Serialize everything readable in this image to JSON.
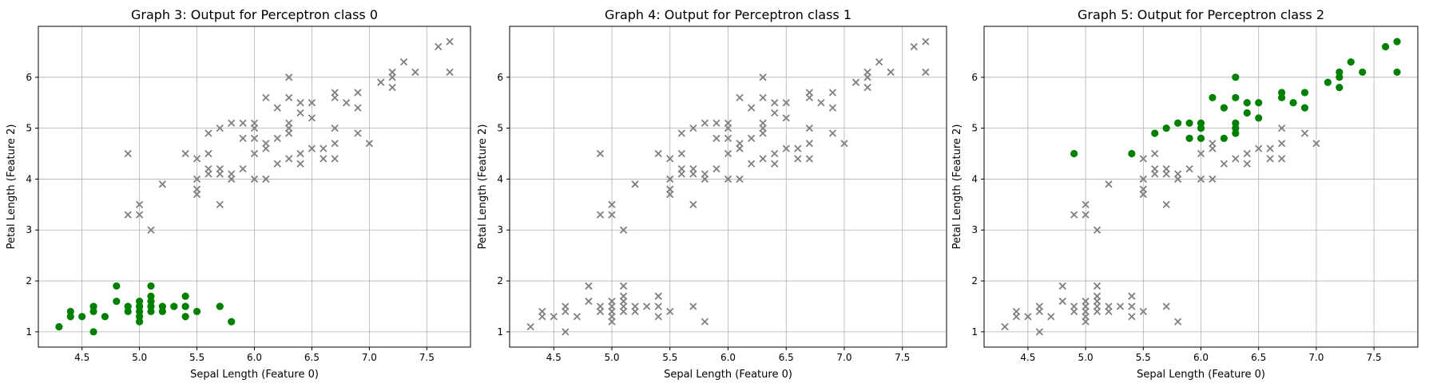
{
  "chart_data": [
    {
      "type": "scatter",
      "title": "Graph 3: Output for Perceptron class 0",
      "xlabel": "Sepal Length (Feature 0)",
      "ylabel": "Petal Length (Feature 2)",
      "xlim": [
        4.12,
        7.88
      ],
      "ylim": [
        0.7,
        7.0
      ],
      "xticks": [
        4.5,
        5.0,
        5.5,
        6.0,
        6.5,
        7.0,
        7.5
      ],
      "yticks": [
        1,
        2,
        3,
        4,
        5,
        6
      ],
      "grid": true,
      "positive_color": "#008000",
      "negative_color": "#808080",
      "positive_class": 0
    },
    {
      "type": "scatter",
      "title": "Graph 4: Output for Perceptron class 1",
      "xlabel": "Sepal Length (Feature 0)",
      "ylabel": "Petal Length (Feature 2)",
      "xlim": [
        4.12,
        7.88
      ],
      "ylim": [
        0.7,
        7.0
      ],
      "xticks": [
        4.5,
        5.0,
        5.5,
        6.0,
        6.5,
        7.0,
        7.5
      ],
      "yticks": [
        1,
        2,
        3,
        4,
        5,
        6
      ],
      "grid": true,
      "positive_color": "#008000",
      "negative_color": "#808080",
      "positive_class": 1
    },
    {
      "type": "scatter",
      "title": "Graph 5: Output for Perceptron class 2",
      "xlabel": "Sepal Length (Feature 0)",
      "ylabel": "Petal Length (Feature 2)",
      "xlim": [
        4.12,
        7.88
      ],
      "ylim": [
        0.7,
        7.0
      ],
      "xticks": [
        4.5,
        5.0,
        5.5,
        6.0,
        6.5,
        7.0,
        7.5
      ],
      "yticks": [
        1,
        2,
        3,
        4,
        5,
        6
      ],
      "grid": true,
      "positive_color": "#008000",
      "negative_color": "#808080",
      "positive_class": 2
    }
  ],
  "points": {
    "class0": [
      [
        4.3,
        1.1
      ],
      [
        4.4,
        1.3
      ],
      [
        4.4,
        1.4
      ],
      [
        4.5,
        1.3
      ],
      [
        4.6,
        1.0
      ],
      [
        4.6,
        1.4
      ],
      [
        4.6,
        1.5
      ],
      [
        4.7,
        1.3
      ],
      [
        4.8,
        1.6
      ],
      [
        4.8,
        1.9
      ],
      [
        4.9,
        1.4
      ],
      [
        4.9,
        1.5
      ],
      [
        5.0,
        1.2
      ],
      [
        5.0,
        1.3
      ],
      [
        5.0,
        1.4
      ],
      [
        5.0,
        1.5
      ],
      [
        5.0,
        1.6
      ],
      [
        5.1,
        1.4
      ],
      [
        5.1,
        1.5
      ],
      [
        5.1,
        1.6
      ],
      [
        5.1,
        1.7
      ],
      [
        5.1,
        1.9
      ],
      [
        5.2,
        1.4
      ],
      [
        5.2,
        1.5
      ],
      [
        5.3,
        1.5
      ],
      [
        5.4,
        1.3
      ],
      [
        5.4,
        1.5
      ],
      [
        5.4,
        1.7
      ],
      [
        5.5,
        1.4
      ],
      [
        5.7,
        1.5
      ],
      [
        5.8,
        1.2
      ]
    ],
    "class1": [
      [
        4.9,
        3.3
      ],
      [
        5.0,
        3.3
      ],
      [
        5.0,
        3.5
      ],
      [
        5.1,
        3.0
      ],
      [
        5.2,
        3.9
      ],
      [
        5.5,
        3.7
      ],
      [
        5.5,
        3.8
      ],
      [
        5.5,
        4.0
      ],
      [
        5.5,
        4.4
      ],
      [
        5.6,
        4.1
      ],
      [
        5.6,
        4.2
      ],
      [
        5.6,
        4.5
      ],
      [
        5.6,
        4.9
      ],
      [
        5.7,
        3.5
      ],
      [
        5.7,
        4.1
      ],
      [
        5.7,
        4.2
      ],
      [
        5.7,
        5.0
      ],
      [
        5.8,
        4.0
      ],
      [
        5.8,
        4.1
      ],
      [
        5.8,
        5.1
      ],
      [
        5.9,
        4.2
      ],
      [
        5.9,
        4.8
      ],
      [
        5.9,
        5.1
      ],
      [
        6.0,
        4.0
      ],
      [
        6.0,
        4.5
      ],
      [
        6.0,
        4.8
      ],
      [
        6.0,
        5.0
      ],
      [
        6.0,
        5.1
      ],
      [
        6.1,
        4.0
      ],
      [
        6.1,
        4.6
      ],
      [
        6.1,
        4.7
      ],
      [
        6.1,
        5.6
      ],
      [
        6.2,
        4.3
      ],
      [
        6.2,
        4.8
      ],
      [
        6.2,
        5.4
      ],
      [
        6.3,
        4.4
      ],
      [
        6.3,
        4.9
      ],
      [
        6.3,
        5.0
      ],
      [
        6.3,
        5.1
      ],
      [
        6.3,
        5.6
      ],
      [
        6.3,
        6.0
      ],
      [
        6.4,
        4.3
      ],
      [
        6.4,
        4.5
      ],
      [
        6.4,
        5.3
      ],
      [
        6.4,
        5.5
      ],
      [
        6.5,
        4.6
      ],
      [
        6.5,
        5.2
      ],
      [
        6.5,
        5.5
      ],
      [
        6.6,
        4.4
      ],
      [
        6.6,
        4.6
      ],
      [
        6.7,
        4.4
      ],
      [
        6.7,
        4.7
      ],
      [
        6.7,
        5.0
      ],
      [
        6.7,
        5.6
      ],
      [
        6.7,
        5.7
      ],
      [
        6.8,
        5.5
      ],
      [
        6.9,
        4.9
      ],
      [
        6.9,
        5.4
      ],
      [
        6.9,
        5.7
      ],
      [
        7.0,
        4.7
      ],
      [
        7.1,
        5.9
      ],
      [
        7.2,
        5.8
      ],
      [
        7.2,
        6.0
      ],
      [
        7.2,
        6.1
      ],
      [
        7.3,
        6.3
      ],
      [
        7.4,
        6.1
      ],
      [
        7.6,
        6.6
      ],
      [
        7.7,
        6.1
      ],
      [
        7.7,
        6.7
      ],
      [
        4.9,
        4.5
      ],
      [
        5.4,
        4.5
      ]
    ],
    "class2": [
      [
        4.9,
        4.5
      ],
      [
        5.4,
        4.5
      ],
      [
        5.6,
        4.9
      ],
      [
        5.7,
        5.0
      ],
      [
        5.8,
        5.1
      ],
      [
        5.9,
        4.8
      ],
      [
        5.9,
        5.1
      ],
      [
        6.0,
        4.8
      ],
      [
        6.0,
        5.0
      ],
      [
        6.0,
        5.1
      ],
      [
        6.1,
        5.6
      ],
      [
        6.2,
        4.8
      ],
      [
        6.2,
        5.4
      ],
      [
        6.3,
        4.9
      ],
      [
        6.3,
        5.0
      ],
      [
        6.3,
        5.1
      ],
      [
        6.3,
        5.6
      ],
      [
        6.3,
        6.0
      ],
      [
        6.4,
        5.3
      ],
      [
        6.4,
        5.5
      ],
      [
        6.5,
        5.2
      ],
      [
        6.5,
        5.5
      ],
      [
        6.7,
        5.6
      ],
      [
        6.7,
        5.7
      ],
      [
        6.8,
        5.5
      ],
      [
        6.9,
        5.4
      ],
      [
        6.9,
        5.7
      ],
      [
        7.1,
        5.9
      ],
      [
        7.2,
        5.8
      ],
      [
        7.2,
        6.0
      ],
      [
        7.2,
        6.1
      ],
      [
        7.3,
        6.3
      ],
      [
        7.4,
        6.1
      ],
      [
        7.6,
        6.6
      ],
      [
        7.7,
        6.1
      ],
      [
        7.7,
        6.7
      ]
    ]
  }
}
